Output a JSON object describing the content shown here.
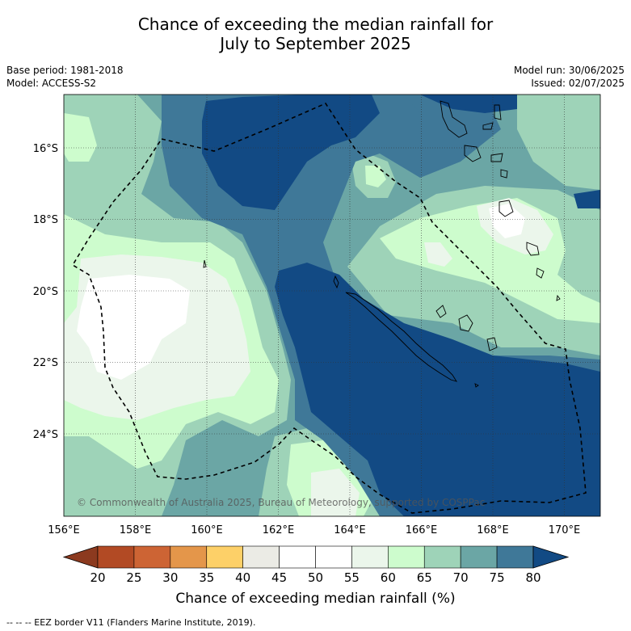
{
  "title_line1": "Chance of exceeding the median rainfall for",
  "title_line2": "July to September 2025",
  "meta": {
    "base_period": "Base period: 1981-2018",
    "model": "Model: ACCESS-S2",
    "model_run": "Model run: 30/06/2025",
    "issued": "Issued: 02/07/2025"
  },
  "map": {
    "lon_range": [
      156,
      171
    ],
    "lat_range": [
      -26.5,
      -14.7
    ],
    "x_ticks": [
      "156°E",
      "158°E",
      "160°E",
      "162°E",
      "164°E",
      "166°E",
      "168°E",
      "170°E"
    ],
    "y_ticks": [
      "16°S",
      "18°S",
      "20°S",
      "22°S",
      "24°S"
    ],
    "copyright": "© Commonwealth of Australia 2025, Bureau of Meteorology, supported by COSPPac"
  },
  "colorbar": {
    "ticks": [
      "20",
      "25",
      "30",
      "35",
      "40",
      "45",
      "50",
      "55",
      "60",
      "65",
      "70",
      "75",
      "80"
    ],
    "colors": [
      "#8c3a1f",
      "#b24a24",
      "#cd6434",
      "#e4964a",
      "#fdd068",
      "#ebebe5",
      "#ffffff",
      "#ffffff",
      "#ebf6eb",
      "#cdfccd",
      "#9ed3b8",
      "#6ba6a5",
      "#3f7898",
      "#124a84"
    ],
    "label": "Chance of exceeding median rainfall (%)"
  },
  "footer": "-- -- -- EEZ border V11 (Flanders Marine Institute, 2019)."
}
